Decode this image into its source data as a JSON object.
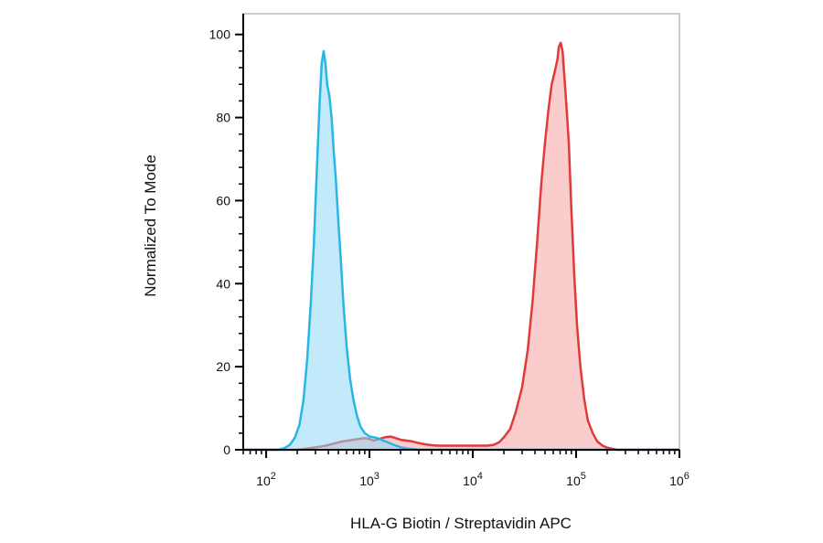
{
  "chart_data": {
    "type": "area",
    "xlabel": "HLA-G Biotin / Streptavidin APC",
    "ylabel": "Normalized To Mode",
    "x_scale": "log",
    "xlim": [
      60,
      1000000
    ],
    "ylim": [
      0,
      105
    ],
    "x_ticks": [
      {
        "value": 100,
        "base": "10",
        "exp": "2"
      },
      {
        "value": 1000,
        "base": "10",
        "exp": "3"
      },
      {
        "value": 10000,
        "base": "10",
        "exp": "4"
      },
      {
        "value": 100000,
        "base": "10",
        "exp": "5"
      },
      {
        "value": 1000000,
        "base": "10",
        "exp": "6"
      }
    ],
    "y_ticks": [
      {
        "value": 0,
        "label": "0"
      },
      {
        "value": 20,
        "label": "20"
      },
      {
        "value": 40,
        "label": "40"
      },
      {
        "value": 60,
        "label": "60"
      },
      {
        "value": 80,
        "label": "80"
      },
      {
        "value": 100,
        "label": "100"
      }
    ],
    "series": [
      {
        "color": "#e03a3a",
        "fill": "#f6a3a3",
        "points": [
          [
            60,
            0
          ],
          [
            130,
            0
          ],
          [
            200,
            0
          ],
          [
            250,
            0.3
          ],
          [
            300,
            0.6
          ],
          [
            380,
            1.0
          ],
          [
            450,
            1.5
          ],
          [
            550,
            2.0
          ],
          [
            650,
            2.3
          ],
          [
            780,
            2.6
          ],
          [
            900,
            2.8
          ],
          [
            1000,
            2.6
          ],
          [
            1100,
            2.2
          ],
          [
            1250,
            2.6
          ],
          [
            1400,
            3.0
          ],
          [
            1600,
            3.2
          ],
          [
            1800,
            2.8
          ],
          [
            2000,
            2.4
          ],
          [
            2300,
            2.2
          ],
          [
            2600,
            2.0
          ],
          [
            3000,
            1.6
          ],
          [
            3500,
            1.3
          ],
          [
            4000,
            1.1
          ],
          [
            4500,
            1.0
          ],
          [
            5000,
            1.0
          ],
          [
            6000,
            1.0
          ],
          [
            7000,
            1.0
          ],
          [
            8000,
            1.0
          ],
          [
            10000,
            1.0
          ],
          [
            12000,
            1.0
          ],
          [
            14000,
            1.0
          ],
          [
            16000,
            1.2
          ],
          [
            18000,
            1.8
          ],
          [
            20000,
            3.0
          ],
          [
            23000,
            5.0
          ],
          [
            26000,
            9
          ],
          [
            30000,
            15
          ],
          [
            34000,
            24
          ],
          [
            38000,
            36
          ],
          [
            42000,
            50
          ],
          [
            46000,
            64
          ],
          [
            50000,
            74
          ],
          [
            54000,
            82
          ],
          [
            58000,
            88
          ],
          [
            62000,
            91
          ],
          [
            66000,
            94
          ],
          [
            68000,
            97
          ],
          [
            71000,
            98
          ],
          [
            74000,
            96
          ],
          [
            78000,
            88
          ],
          [
            82000,
            80
          ],
          [
            85000,
            74
          ],
          [
            90000,
            58
          ],
          [
            96000,
            42
          ],
          [
            102000,
            30
          ],
          [
            110000,
            20
          ],
          [
            120000,
            12
          ],
          [
            130000,
            7
          ],
          [
            145000,
            4
          ],
          [
            160000,
            2
          ],
          [
            180000,
            1
          ],
          [
            200000,
            0.5
          ],
          [
            250000,
            0
          ],
          [
            1000000,
            0
          ]
        ]
      },
      {
        "color": "#29b6e6",
        "fill": "#8fd8f5",
        "points": [
          [
            60,
            0
          ],
          [
            130,
            0
          ],
          [
            150,
            0.4
          ],
          [
            170,
            1.2
          ],
          [
            190,
            3
          ],
          [
            210,
            6
          ],
          [
            230,
            12
          ],
          [
            250,
            22
          ],
          [
            270,
            35
          ],
          [
            290,
            50
          ],
          [
            310,
            68
          ],
          [
            330,
            84
          ],
          [
            345,
            93
          ],
          [
            360,
            96
          ],
          [
            375,
            93
          ],
          [
            390,
            88
          ],
          [
            410,
            85
          ],
          [
            430,
            80
          ],
          [
            450,
            72
          ],
          [
            470,
            66
          ],
          [
            500,
            55
          ],
          [
            530,
            45
          ],
          [
            560,
            35
          ],
          [
            600,
            25
          ],
          [
            650,
            17
          ],
          [
            700,
            12
          ],
          [
            760,
            8
          ],
          [
            820,
            5.5
          ],
          [
            900,
            4
          ],
          [
            1000,
            3.2
          ],
          [
            1100,
            3.0
          ],
          [
            1200,
            2.8
          ],
          [
            1300,
            2.4
          ],
          [
            1500,
            1.8
          ],
          [
            1700,
            1.2
          ],
          [
            2000,
            0.6
          ],
          [
            2300,
            0.3
          ],
          [
            3000,
            0
          ],
          [
            1000000,
            0
          ]
        ]
      }
    ]
  }
}
